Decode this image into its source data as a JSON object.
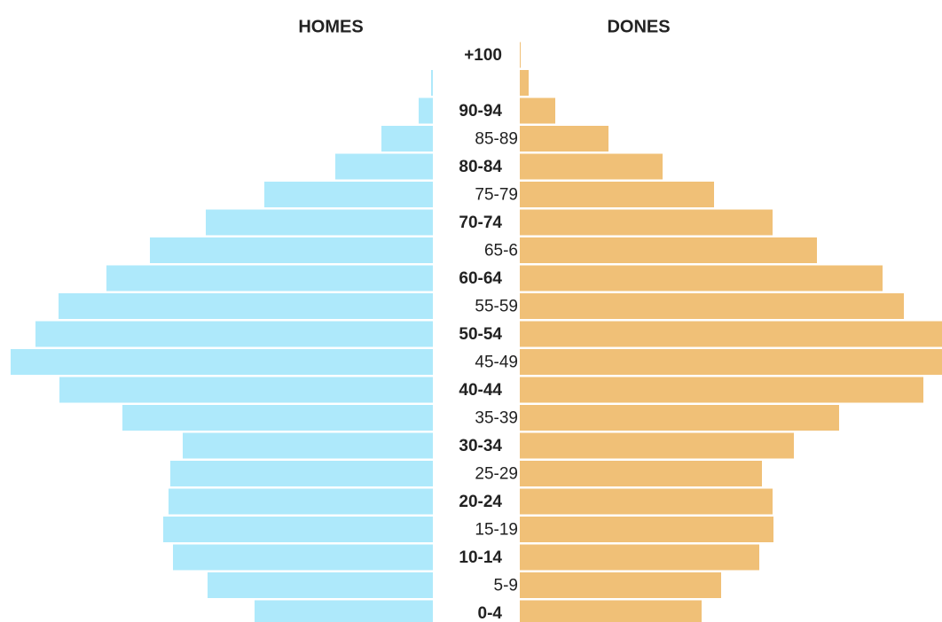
{
  "chart_data": {
    "type": "pyramid",
    "categories": [
      "+100",
      null,
      "90-94",
      "85-89",
      "80-84",
      "75-79",
      "70-74",
      "65-6",
      "60-64",
      "55-59",
      "50-54",
      "45-49",
      "40-44",
      "35-39",
      "30-34",
      "25-29",
      "20-24",
      "15-19",
      "10-14",
      "5-9",
      "0-4"
    ],
    "series": [
      {
        "name": "HOMES",
        "color": "#aee9fb",
        "values": [
          0,
          2,
          16,
          58,
          110,
          190,
          256,
          319,
          368,
          422,
          448,
          476,
          421,
          350,
          282,
          296,
          298,
          304,
          293,
          254,
          201
        ]
      },
      {
        "name": "DONES",
        "color": "#f0c077",
        "values": [
          1,
          10,
          40,
          100,
          161,
          219,
          285,
          335,
          409,
          433,
          476,
          476,
          455,
          360,
          309,
          273,
          285,
          286,
          270,
          227,
          205
        ]
      }
    ]
  }
}
